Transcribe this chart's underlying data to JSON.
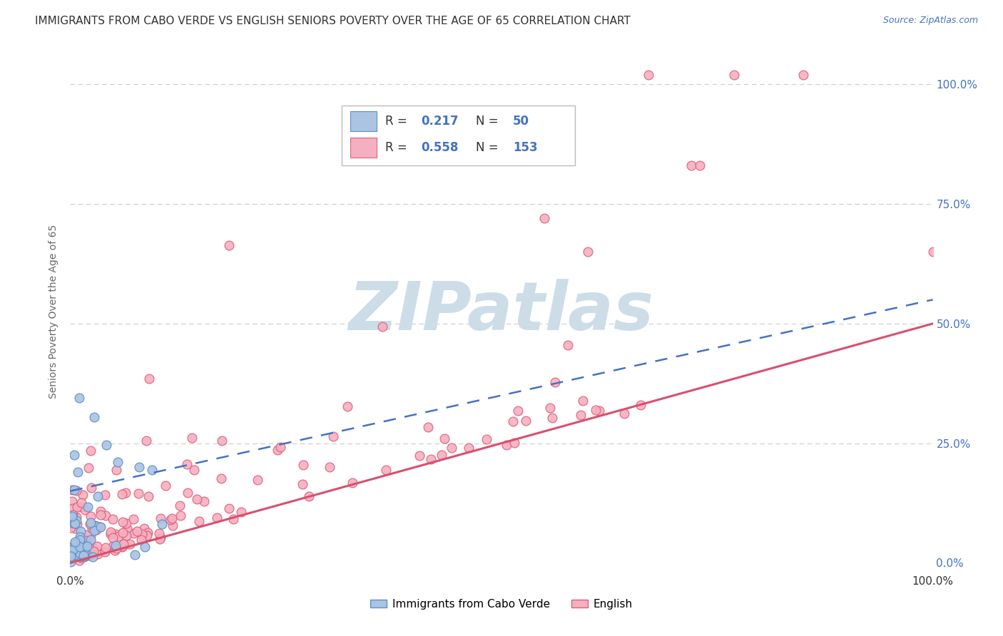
{
  "title": "IMMIGRANTS FROM CABO VERDE VS ENGLISH SENIORS POVERTY OVER THE AGE OF 65 CORRELATION CHART",
  "source": "Source: ZipAtlas.com",
  "ylabel": "Seniors Poverty Over the Age of 65",
  "cabo_verde_R": 0.217,
  "cabo_verde_N": 50,
  "english_R": 0.558,
  "english_N": 153,
  "legend_labels": [
    "Immigrants from Cabo Verde",
    "English"
  ],
  "cabo_verde_color": "#aac4e2",
  "cabo_verde_edge_color": "#5b8fcc",
  "cabo_verde_line_color": "#4472c4",
  "english_color": "#f5afc0",
  "english_edge_color": "#e0607a",
  "english_line_color": "#d94f6e",
  "background_color": "#ffffff",
  "watermark_text": "ZIPatlas",
  "watermark_color": "#ccdde8",
  "title_fontsize": 11,
  "source_fontsize": 9,
  "axis_tick_fontsize": 11,
  "right_tick_color": "#4472c4",
  "grid_color": "#cccccc"
}
